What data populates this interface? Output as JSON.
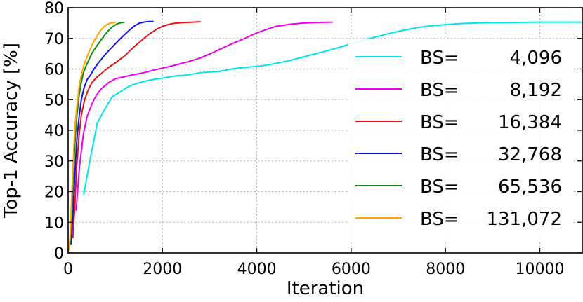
{
  "chart_data": {
    "type": "line",
    "title": "",
    "xlabel": "Iteration",
    "ylabel": "Top-1 Accuracy [%]",
    "xlim": [
      0,
      10900
    ],
    "ylim": [
      0,
      80
    ],
    "xticks": [
      0,
      2000,
      4000,
      6000,
      8000,
      10000
    ],
    "yticks": [
      0,
      10,
      20,
      30,
      40,
      50,
      60,
      70,
      80
    ],
    "xtick_labels": [
      "0",
      "2000",
      "4000",
      "6000",
      "8000",
      "10000"
    ],
    "ytick_labels": [
      "0",
      "10",
      "20",
      "30",
      "40",
      "50",
      "60",
      "70",
      "80"
    ],
    "grid": true,
    "legend_position": "right",
    "series": [
      {
        "name": "BS=    4,096",
        "label_prefix": "BS=",
        "label_value": "4,096",
        "color": "#00e5ee",
        "x": [
          330,
          470,
          620,
          780,
          940,
          1100,
          1300,
          1500,
          1700,
          1900,
          2100,
          2300,
          2500,
          2800,
          3000,
          3200,
          3500,
          3800,
          4100,
          4400,
          4700,
          5000,
          5300,
          5600,
          5900,
          6200,
          6500,
          6800,
          7100,
          7400,
          7700,
          8000,
          8300,
          8600,
          9000,
          9500,
          10000,
          10500,
          10900
        ],
        "y": [
          19,
          31,
          42.5,
          47,
          51,
          52.5,
          54.5,
          55.5,
          56.3,
          56.8,
          57.3,
          57.8,
          58,
          58.8,
          59,
          59.2,
          60.1,
          60.6,
          61,
          61.8,
          62.8,
          64,
          65.2,
          66.4,
          67.8,
          69.2,
          70.4,
          71.6,
          72.6,
          73.5,
          74.1,
          74.5,
          74.8,
          75,
          75.1,
          75.2,
          75.3,
          75.3,
          75.3
        ]
      },
      {
        "name": "BS=    8,192",
        "label_prefix": "BS=",
        "label_value": "8,192",
        "color": "#ee00ee",
        "x": [
          170,
          240,
          320,
          400,
          500,
          600,
          700,
          850,
          1000,
          1200,
          1400,
          1600,
          1800,
          2000,
          2200,
          2500,
          2800,
          3000,
          3200,
          3500,
          3800,
          4000,
          4200,
          4400,
          4700,
          5000,
          5300,
          5600
        ],
        "y": [
          14,
          28,
          38.5,
          44.5,
          48.5,
          51.5,
          53.5,
          55.5,
          56.8,
          57.5,
          58.2,
          58.8,
          59.6,
          60.3,
          61,
          62.2,
          63.6,
          64.9,
          66.3,
          68.4,
          70.4,
          71.8,
          72.9,
          73.9,
          74.6,
          75,
          75.2,
          75.3
        ]
      },
      {
        "name": "BS= 16,384",
        "label_prefix": "BS=",
        "label_value": "16,384",
        "color": "#ee1111",
        "x": [
          100,
          140,
          180,
          230,
          280,
          350,
          420,
          500,
          600,
          700,
          800,
          900,
          1000,
          1100,
          1200,
          1300,
          1400,
          1500,
          1600,
          1700,
          1800,
          1900,
          2000,
          2100,
          2200,
          2300,
          2400,
          2500,
          2650,
          2800
        ],
        "y": [
          5,
          15,
          28,
          38,
          45,
          50,
          53,
          55.5,
          57.2,
          58.5,
          59.8,
          61,
          62,
          63.2,
          64.3,
          65.8,
          67.3,
          68.6,
          69.9,
          71.2,
          72.2,
          73.2,
          73.9,
          74.4,
          74.8,
          75,
          75.1,
          75.2,
          75.3,
          75.4
        ]
      },
      {
        "name": "BS= 32,768",
        "label_prefix": "BS=",
        "label_value": "32,768",
        "color": "#1111ee",
        "x": [
          60,
          100,
          140,
          180,
          230,
          280,
          340,
          400,
          470,
          550,
          630,
          720,
          800,
          900,
          1000,
          1100,
          1200,
          1300,
          1400,
          1500,
          1600,
          1700,
          1800
        ],
        "y": [
          3,
          12,
          25,
          36,
          44,
          50,
          54,
          56.5,
          58,
          60,
          61.8,
          63.5,
          65,
          66.6,
          68.2,
          69.8,
          71.3,
          72.7,
          74,
          74.9,
          75.3,
          75.5,
          75.5
        ]
      },
      {
        "name": "BS= 65,536",
        "label_prefix": "BS=",
        "label_value": "65,536",
        "color": "#118811",
        "x": [
          30,
          60,
          100,
          140,
          180,
          220,
          270,
          320,
          380,
          440,
          500,
          560,
          630,
          700,
          770,
          840,
          910,
          980,
          1050,
          1120,
          1180
        ],
        "y": [
          2,
          8,
          22,
          35,
          44,
          50,
          55,
          58.5,
          61,
          63,
          65,
          66.5,
          68,
          69.5,
          71,
          72.3,
          73.4,
          74.2,
          74.8,
          75.1,
          75.2
        ]
      },
      {
        "name": "BS=131,072",
        "label_prefix": "BS=",
        "label_value": "131,072",
        "color": "#ffa500",
        "x": [
          20,
          40,
          70,
          100,
          130,
          160,
          200,
          240,
          290,
          340,
          400,
          460,
          520,
          580,
          640,
          700,
          760,
          820,
          880,
          950,
          1000
        ],
        "y": [
          1,
          5,
          16,
          27,
          37,
          44,
          50,
          55,
          58.5,
          61.5,
          64,
          66.2,
          68.2,
          70,
          71.5,
          72.8,
          73.8,
          74.5,
          74.9,
          75.1,
          75.2
        ]
      }
    ]
  }
}
